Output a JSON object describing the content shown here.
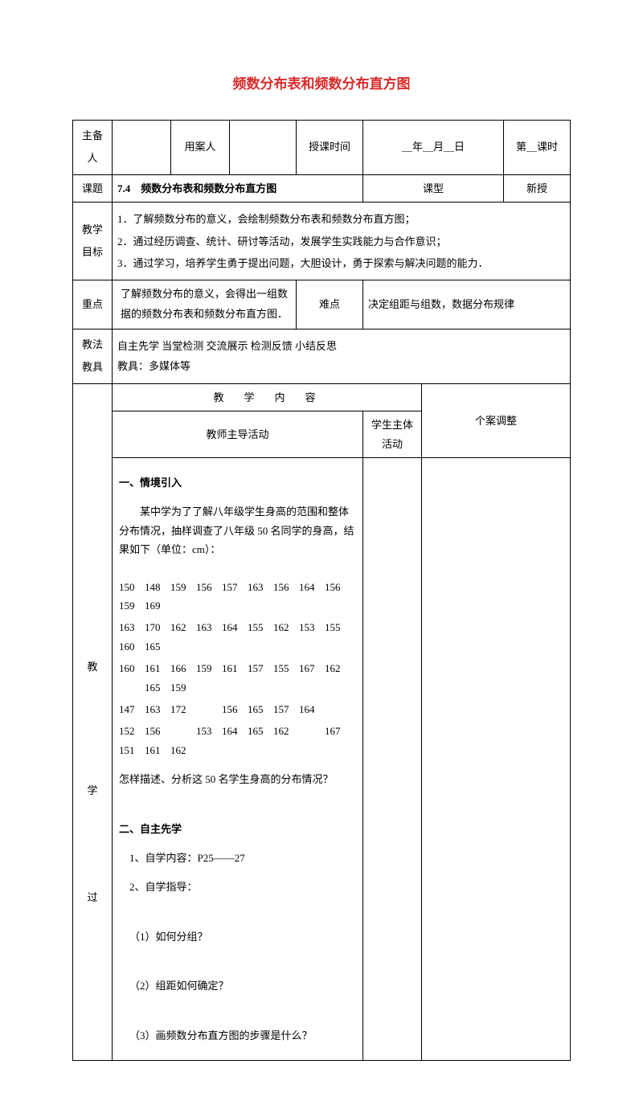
{
  "title": "频数分布表和频数分布直方图",
  "row1": {
    "c1": "主备人",
    "c2": "",
    "c3": "用案人",
    "c4": "",
    "c5": "授课时间",
    "c6": "＿年＿月＿日",
    "c7": "第＿课时"
  },
  "row2": {
    "label": "课题",
    "value": "7.4　频数分布表和频数分布直方图",
    "typeLabel": "课型",
    "typeValue": "新授"
  },
  "goals": {
    "label": "教学目标",
    "g1": "1．了解频数分布的意义，会绘制频数分布表和频数分布直方图；",
    "g2": "2．通过经历调查、统计、研讨等活动，发展学生实践能力与合作意识；",
    "g3": "3．通过学习，培养学生勇于提出问题，大胆设计，勇于探索与解决问题的能力．"
  },
  "focus": {
    "label": "重点",
    "text": "了解频数分布的意义，会得出一组数据的频数分布表和频数分布直方图．",
    "diffLabel": "难点",
    "diffText": "决定组距与组数，数据分布规律"
  },
  "method": {
    "label1": "教法",
    "label2": "教具",
    "line1": "自主先学  当堂检测  交流展示  检测反馈  小结反思",
    "line2": "教具：多媒体等"
  },
  "contentHeader": "教　学　内　容",
  "adjustHeader": "个案调整",
  "teacherActHeader": "教师主导活动",
  "studentActHeader": "学生主体活动",
  "bigLabel1": "教",
  "bigLabel2": "学",
  "bigLabel3": "过",
  "section1": {
    "title": "一、情境引入",
    "para": "某中学为了了解八年级学生身高的范围和整体分布情况，抽样调查了八年级 50 名同学的身高，结果如下（单位：cm）：",
    "rows": [
      [
        "150",
        "148",
        "159",
        "156",
        "157",
        "163",
        "156",
        "164",
        "156",
        "159",
        "169"
      ],
      [
        "163",
        "170",
        "162",
        "163",
        "164",
        "155",
        "162",
        "153",
        "155",
        "160",
        "165"
      ],
      [
        "160",
        "161",
        "166",
        "159",
        "161",
        "157",
        "155",
        "167",
        "162",
        "",
        "165",
        "159"
      ],
      [
        "147",
        "163",
        "172",
        "",
        "156",
        "165",
        "157",
        "164"
      ],
      [
        "152",
        "156",
        "",
        "153",
        "164",
        "165",
        "162",
        "",
        "167",
        "151",
        "161",
        "162"
      ]
    ],
    "question": "怎样描述、分析这 50 名学生身高的分布情况？"
  },
  "section2": {
    "title": "二、自主先学",
    "l1": "1、自学内容：P25——27",
    "l2": "2、自学指导：",
    "q1": "（1）如何分组？",
    "q2": "（2）组距如何确定？",
    "q3": "（3）画频数分布直方图的步骤是什么？"
  }
}
